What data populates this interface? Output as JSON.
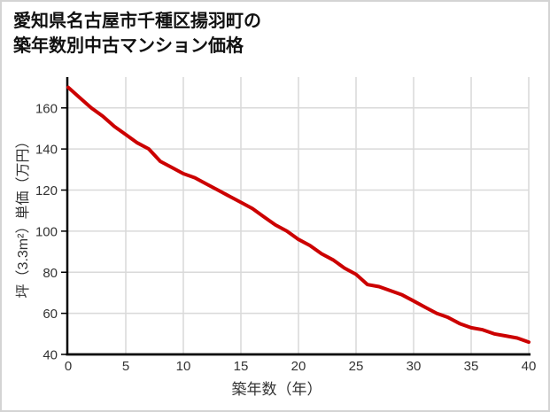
{
  "page": {
    "background_color": "#ffffff",
    "border_color": "#d4d4d4"
  },
  "title": {
    "line1": "愛知県名古屋市千種区揚羽町の",
    "line2": "築年数別中古マンション価格"
  },
  "chart_data": {
    "type": "line",
    "title": "愛知県名古屋市千種区揚羽町の築年数別中古マンション価格",
    "xlabel": "築年数（年）",
    "ylabel": "坪（3.3m²）単価（万円）",
    "x": [
      0,
      1,
      2,
      3,
      4,
      5,
      6,
      7,
      8,
      9,
      10,
      11,
      12,
      13,
      14,
      15,
      16,
      17,
      18,
      19,
      20,
      21,
      22,
      23,
      24,
      25,
      26,
      27,
      28,
      29,
      30,
      31,
      32,
      33,
      34,
      35,
      36,
      37,
      38,
      39,
      40
    ],
    "values": [
      170,
      165,
      160,
      156,
      151,
      147,
      143,
      140,
      134,
      131,
      128,
      126,
      123,
      120,
      117,
      114,
      111,
      107,
      103,
      100,
      96,
      93,
      89,
      86,
      82,
      79,
      74,
      73,
      71,
      69,
      66,
      63,
      60,
      58,
      55,
      53,
      52,
      50,
      49,
      48,
      46
    ],
    "xlim": [
      0,
      40
    ],
    "ylim": [
      40,
      175
    ],
    "xticks": [
      0,
      5,
      10,
      15,
      20,
      25,
      30,
      35,
      40
    ],
    "yticks": [
      40,
      60,
      80,
      100,
      120,
      140,
      160
    ],
    "grid": true,
    "legend": false,
    "line_color": "#cc0000",
    "line_width": 4,
    "grid_color": "#d9d9d9",
    "axis_color": "#000000",
    "tick_label_color": "#333333",
    "tick_font_size": 15
  }
}
